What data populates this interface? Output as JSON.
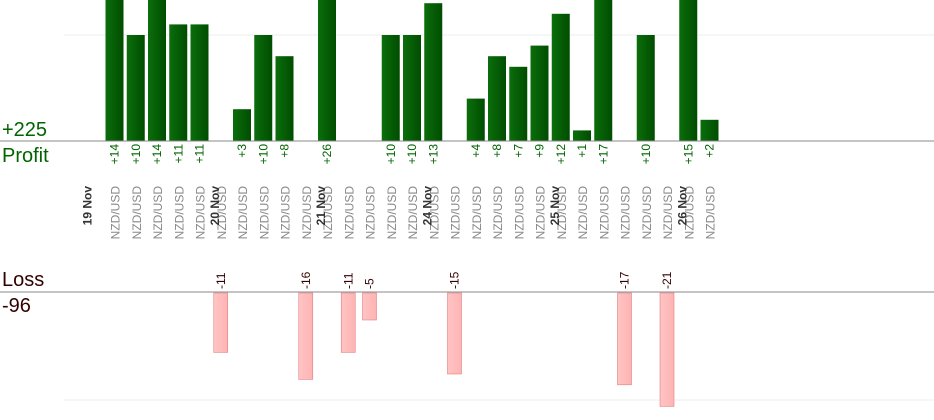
{
  "summary": {
    "profit_total": "+225",
    "profit_label": "Profit",
    "loss_label": "Loss",
    "loss_total": "-96"
  },
  "colors": {
    "profit_bar": "#0b6e0b",
    "profit_bar_dark": "#004d00",
    "profit_text": "#006400",
    "loss_bar": "#ffb3b3",
    "loss_bar_edge": "#e08080",
    "loss_text": "#330000",
    "axis": "#888888",
    "grid": "#eeeeee",
    "pair_text": "#888888",
    "date_text": "#333333"
  },
  "chart_data": {
    "type": "bar",
    "title": "",
    "xlabel": "",
    "ylabel": "",
    "dates": [
      {
        "label": "19 Nov",
        "after_slot": -1
      },
      {
        "label": "20 Nov",
        "after_slot": 5
      },
      {
        "label": "21 Nov",
        "after_slot": 10
      },
      {
        "label": "24 Nov",
        "after_slot": 15
      },
      {
        "label": "25 Nov",
        "after_slot": 21
      },
      {
        "label": "26 Nov",
        "after_slot": 27
      }
    ],
    "trades": [
      {
        "pair": "NZD/USD",
        "profit": "+14",
        "value": 14
      },
      {
        "pair": "NZD/USD",
        "profit": "+10",
        "value": 10
      },
      {
        "pair": "NZD/USD",
        "profit": "+14",
        "value": 14
      },
      {
        "pair": "NZD/USD",
        "profit": "+11",
        "value": 11
      },
      {
        "pair": "NZD/USD",
        "profit": "+11",
        "value": 11
      },
      {
        "pair": "NZD/USD",
        "loss": "-11",
        "value": -11
      },
      {
        "pair": "NZD/USD",
        "profit": "+3",
        "value": 3
      },
      {
        "pair": "NZD/USD",
        "profit": "+10",
        "value": 10
      },
      {
        "pair": "NZD/USD",
        "profit": "+8",
        "value": 8
      },
      {
        "pair": "NZD/USD",
        "loss": "-16",
        "value": -16
      },
      {
        "pair": "NZD/USD",
        "profit": "+26",
        "value": 26
      },
      {
        "pair": "NZD/USD",
        "loss": "-11",
        "value": -11
      },
      {
        "pair": "NZD/USD",
        "loss": "-5",
        "value": -5
      },
      {
        "pair": "NZD/USD",
        "profit": "+10",
        "value": 10
      },
      {
        "pair": "NZD/USD",
        "profit": "+10",
        "value": 10
      },
      {
        "pair": "NZD/USD",
        "profit": "+13",
        "value": 13
      },
      {
        "pair": "NZD/USD",
        "loss": "-15",
        "value": -15
      },
      {
        "pair": "NZD/USD",
        "profit": "+4",
        "value": 4
      },
      {
        "pair": "NZD/USD",
        "profit": "+8",
        "value": 8
      },
      {
        "pair": "NZD/USD",
        "profit": "+7",
        "value": 7
      },
      {
        "pair": "NZD/USD",
        "profit": "+9",
        "value": 9
      },
      {
        "pair": "NZD/USD",
        "profit": "+12",
        "value": 12
      },
      {
        "pair": "NZD/USD",
        "profit": "+1",
        "value": 1
      },
      {
        "pair": "NZD/USD",
        "profit": "+17",
        "value": 17
      },
      {
        "pair": "NZD/USD",
        "loss": "-17",
        "value": -17
      },
      {
        "pair": "NZD/USD",
        "profit": "+10",
        "value": 10
      },
      {
        "pair": "NZD/USD",
        "loss": "-21",
        "value": -21
      },
      {
        "pair": "NZD/USD",
        "profit": "+15",
        "value": 15
      },
      {
        "pair": "NZD/USD",
        "profit": "+2",
        "value": 2
      }
    ],
    "profit_axis": {
      "max_visible": 13,
      "gridline_value": 10
    },
    "loss_axis": {
      "max_visible": 21,
      "gridline_value": 20
    },
    "grid": true,
    "legend": "none"
  }
}
